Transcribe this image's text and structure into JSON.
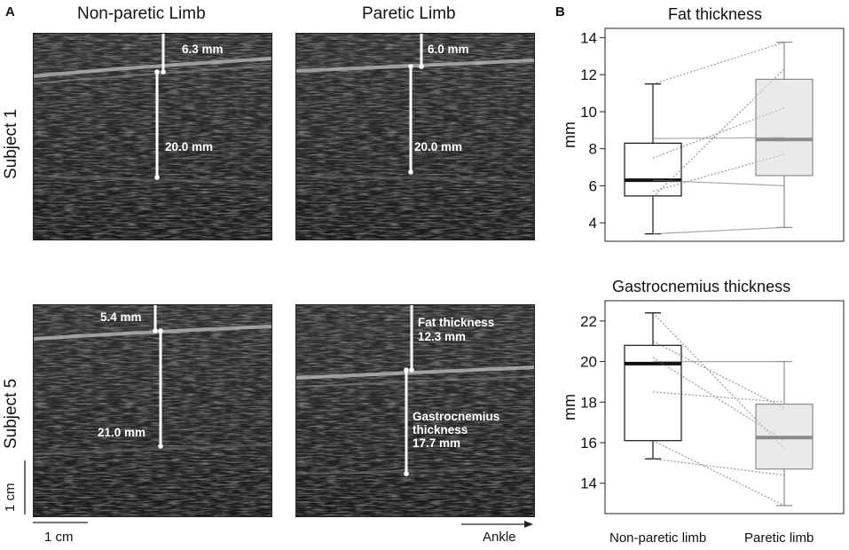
{
  "panel_a": {
    "letter": "A",
    "col_titles": [
      "Non-paretic Limb",
      "Paretic Limb"
    ],
    "row_labels": [
      "Subject 1",
      "Subject 5"
    ],
    "measurements": {
      "s1_nonparetic": {
        "fat": "6.3 mm",
        "gastro": "20.0 mm"
      },
      "s1_paretic": {
        "fat": "6.0 mm",
        "gastro": "20.0 mm"
      },
      "s5_nonparetic": {
        "fat": "5.4 mm",
        "gastro": "21.0 mm"
      },
      "s5_paretic": {
        "fat_l1": "Fat thickness",
        "fat_l2": "12.3 mm",
        "g_l1": "Gastrocnemius",
        "g_l2": "thickness",
        "g_l3": "17.7 mm"
      }
    },
    "scalebar_vertical": "1 cm",
    "scalebar_horizontal": "1 cm",
    "direction_label": "Ankle"
  },
  "panel_b": {
    "letter": "B"
  },
  "chart_data": [
    {
      "type": "box",
      "title": "Fat thickness",
      "ylabel": "mm",
      "categories": [
        "Non-paretic limb",
        "Paretic limb"
      ],
      "ylim": [
        3,
        14.5
      ],
      "yticks": [
        4,
        6,
        8,
        10,
        12,
        14
      ],
      "boxes": [
        {
          "min": 3.4,
          "q1": 5.45,
          "median": 6.3,
          "q3": 8.3,
          "max": 11.5
        },
        {
          "min": 3.75,
          "q1": 6.55,
          "median": 8.5,
          "q3": 11.75,
          "max": 13.75
        }
      ],
      "paired_lines": [
        {
          "style": "solid",
          "values": [
            3.4,
            3.75
          ]
        },
        {
          "style": "solid",
          "values": [
            6.3,
            6.0
          ]
        },
        {
          "style": "solid",
          "values": [
            8.55,
            8.6
          ]
        },
        {
          "style": "dotted",
          "values": [
            5.4,
            12.3
          ]
        },
        {
          "style": "dotted",
          "values": [
            7.5,
            10.2
          ]
        },
        {
          "style": "dotted",
          "values": [
            5.7,
            7.7
          ]
        },
        {
          "style": "dotted",
          "values": [
            11.5,
            13.75
          ]
        }
      ]
    },
    {
      "type": "box",
      "title": "Gastrocnemius thickness",
      "ylabel": "mm",
      "categories": [
        "Non-paretic limb",
        "Paretic limb"
      ],
      "ylim": [
        12.5,
        23
      ],
      "yticks": [
        14,
        16,
        18,
        20,
        22
      ],
      "boxes": [
        {
          "min": 15.2,
          "q1": 16.1,
          "median": 19.9,
          "q3": 20.8,
          "max": 22.4
        },
        {
          "min": 12.9,
          "q1": 14.7,
          "median": 16.25,
          "q3": 17.9,
          "max": 20.0
        }
      ],
      "paired_lines": [
        {
          "style": "solid",
          "values": [
            20.0,
            20.0
          ]
        },
        {
          "style": "dotted",
          "values": [
            18.5,
            18.0
          ]
        },
        {
          "style": "dotted",
          "values": [
            21.0,
            17.7
          ]
        },
        {
          "style": "dotted",
          "values": [
            22.4,
            15.7
          ]
        },
        {
          "style": "dotted",
          "values": [
            20.2,
            16.1
          ]
        },
        {
          "style": "dotted",
          "values": [
            15.2,
            14.4
          ]
        },
        {
          "style": "dotted",
          "values": [
            16.1,
            12.9
          ]
        }
      ]
    }
  ]
}
